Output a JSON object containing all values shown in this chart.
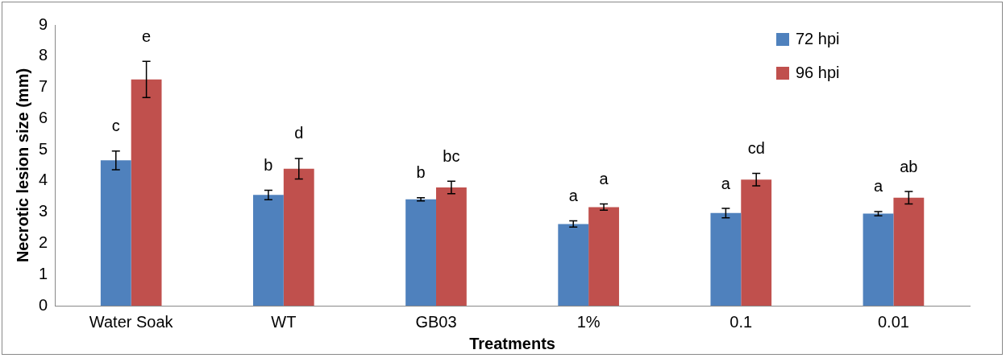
{
  "chart_data": {
    "type": "bar",
    "xlabel": "Treatments",
    "ylabel": "Necrotic lesion size (mm)",
    "categories": [
      "Water Soak",
      "WT",
      "GB03",
      "1%",
      "0.1",
      "0.01"
    ],
    "series": [
      {
        "name": "72 hpi",
        "color": "#4f81bd",
        "values": [
          4.66,
          3.55,
          3.41,
          2.62,
          2.97,
          2.95
        ],
        "errors": [
          0.3,
          0.15,
          0.05,
          0.1,
          0.15,
          0.07
        ]
      },
      {
        "name": "96 hpi",
        "color": "#c0504d",
        "values": [
          7.25,
          4.39,
          3.79,
          3.16,
          4.04,
          3.46
        ],
        "errors": [
          0.58,
          0.33,
          0.2,
          0.1,
          0.2,
          0.2
        ]
      }
    ],
    "ylim": [
      0,
      9
    ],
    "yticks": [
      0,
      1,
      2,
      3,
      4,
      5,
      6,
      7,
      8,
      9
    ],
    "grid": false,
    "legend": "top right",
    "annotations": [
      {
        "text": "c",
        "x": "Water Soak",
        "y": 4.66
      },
      {
        "text": "e",
        "x": "Water Soak",
        "y": 7.25
      },
      {
        "text": "b",
        "x": "WT",
        "y": 3.55
      },
      {
        "text": "d",
        "x": "WT",
        "y": 4.39
      },
      {
        "text": "b",
        "x": "GB03",
        "y": 3.41
      },
      {
        "text": "bc",
        "x": "GB03",
        "y": 3.79
      },
      {
        "text": "a",
        "x": "1%",
        "y": 2.62
      },
      {
        "text": "a",
        "x": "1%",
        "y": 3.16
      },
      {
        "text": "a",
        "x": "0.1",
        "y": 2.97
      },
      {
        "text": "cd",
        "x": "0.1",
        "y": 4.04
      },
      {
        "text": "a",
        "x": "0.01",
        "y": 2.95
      },
      {
        "text": "ab",
        "x": "0.01",
        "y": 3.46
      }
    ]
  }
}
